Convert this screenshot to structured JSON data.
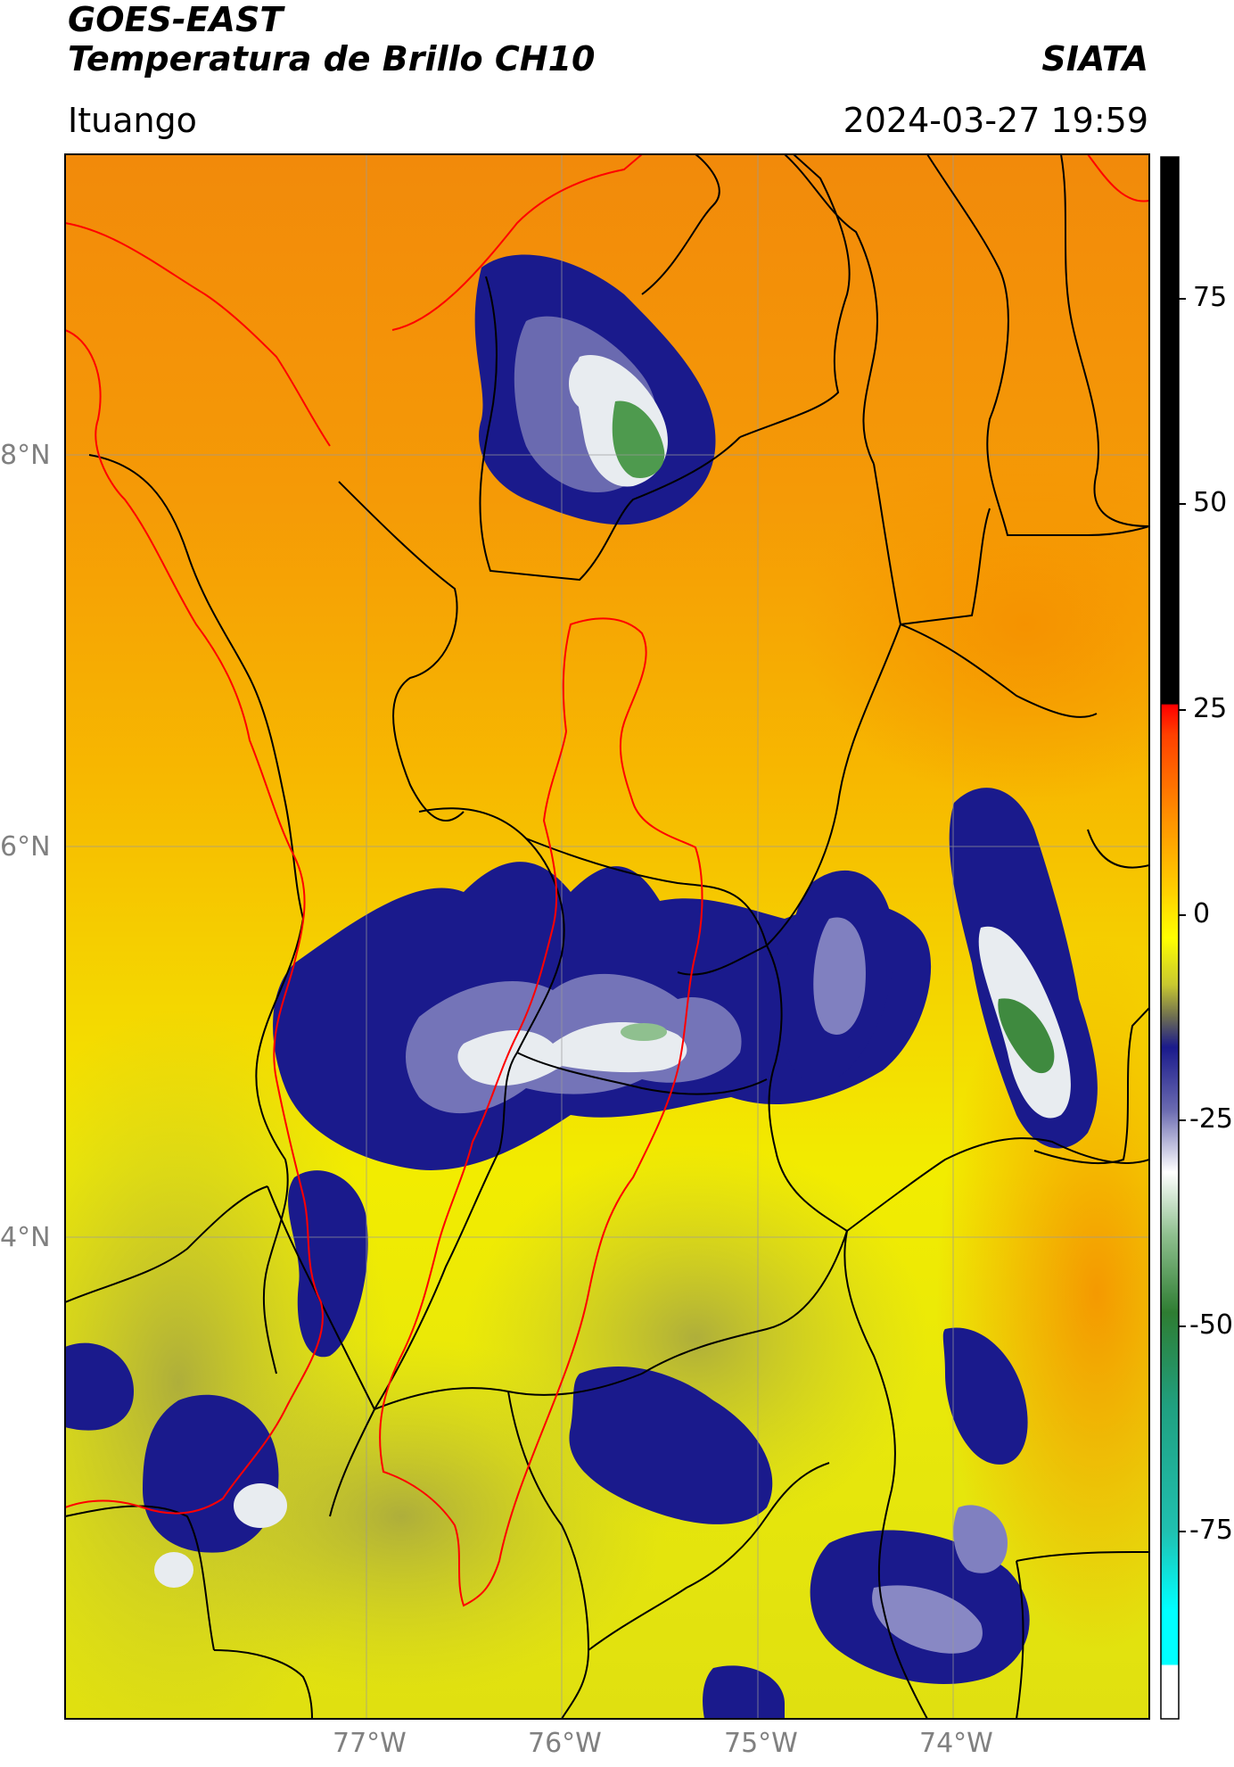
{
  "header": {
    "title_line1": "GOES-EAST",
    "title_line2": "Temperatura de Brillo CH10",
    "organization": "SIATA",
    "region": "Ituango",
    "timestamp": "2024-03-27 19:59"
  },
  "map": {
    "lat_labels": [
      "8°N",
      "6°N",
      "4°N"
    ],
    "lon_labels": [
      "77°W",
      "76°W",
      "75°W",
      "74°W"
    ],
    "colors": {
      "warm_orange": "#f2920a",
      "orange": "#f7a800",
      "yellow": "#f5f000",
      "olive": "#c8c840",
      "navy": "#1a1a8c",
      "white_cloud": "#f0f0f0",
      "green_cloud": "#2e7d32",
      "political_border": "#000000",
      "highlight_border": "#ff0000"
    }
  },
  "colorbar": {
    "tick_labels": [
      "75",
      "50",
      "25",
      "0",
      "-25",
      "-50",
      "-75"
    ],
    "colors": {
      "top": "#000000",
      "red": "#ff0000",
      "orange": "#ff8c00",
      "yellow": "#ffff00",
      "olive": "#9a9a40",
      "navy": "#1a1a8c",
      "white": "#ffffff",
      "green": "#2e7d32",
      "teal": "#20c0a0",
      "cyan": "#00ffff"
    }
  }
}
